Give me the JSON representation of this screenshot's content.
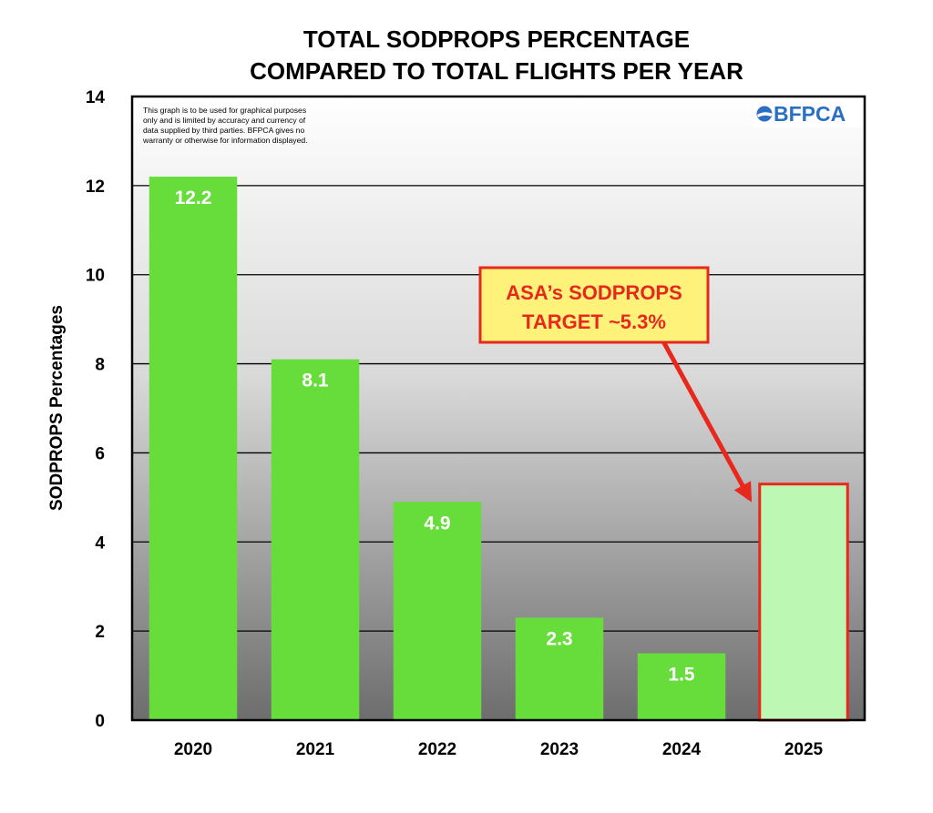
{
  "chart_data": {
    "type": "bar",
    "title_lines": [
      "TOTAL SODPROPS PERCENTAGE",
      "COMPARED TO TOTAL FLIGHTS PER YEAR"
    ],
    "xlabel": "",
    "ylabel": "SODPROPS Percentages",
    "ylim": [
      0,
      14
    ],
    "yticks": [
      0,
      2,
      4,
      6,
      8,
      10,
      12,
      14
    ],
    "grid": true,
    "categories": [
      "2020",
      "2021",
      "2022",
      "2023",
      "2024",
      "2025"
    ],
    "values": [
      12.2,
      8.1,
      4.9,
      2.3,
      1.5,
      5.3
    ],
    "data_labels": [
      "12.2",
      "8.1",
      "4.9",
      "2.3",
      "1.5",
      ""
    ],
    "bar_styles": [
      "actual",
      "actual",
      "actual",
      "actual",
      "actual",
      "target"
    ],
    "colors": {
      "actual_fill": "#66dd3a",
      "target_fill": "#bdf7b4",
      "target_stroke": "#e8281c",
      "callout_fill": "#fff27a",
      "callout_stroke": "#e8281c",
      "arrow": "#e8281c",
      "logo": "#2a6fc4"
    },
    "annotation": {
      "lines": [
        "ASA’s SODPROPS",
        "TARGET ~5.3%"
      ],
      "points_to": "2025"
    },
    "disclaimer_lines": [
      "This graph is to be used for graphical purposes",
      "only and is limited by accuracy and currency of",
      "data supplied by third parties. BFPCA gives no",
      "warranty or otherwise for information displayed."
    ],
    "logo": {
      "text": "BFPCA",
      "icon": "plane-globe-icon"
    }
  }
}
